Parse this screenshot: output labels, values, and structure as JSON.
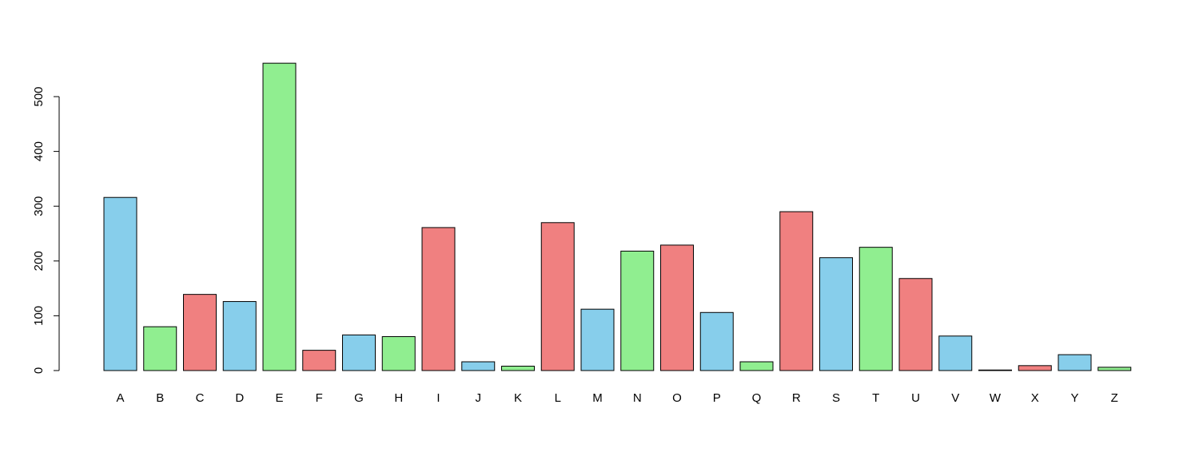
{
  "chart_data": {
    "type": "bar",
    "title": "",
    "xlabel": "",
    "ylabel": "",
    "categories": [
      "A",
      "B",
      "C",
      "D",
      "E",
      "F",
      "G",
      "H",
      "I",
      "J",
      "K",
      "L",
      "M",
      "N",
      "O",
      "P",
      "Q",
      "R",
      "S",
      "T",
      "U",
      "V",
      "W",
      "X",
      "Y",
      "Z"
    ],
    "values": [
      316,
      80,
      139,
      126,
      561,
      37,
      65,
      62,
      261,
      16,
      8,
      270,
      112,
      218,
      229,
      106,
      16,
      290,
      206,
      225,
      168,
      63,
      1,
      9,
      29,
      6
    ],
    "colors": [
      "#87CEEB",
      "#90EE90",
      "#F08080",
      "#87CEEB",
      "#90EE90",
      "#F08080",
      "#87CEEB",
      "#90EE90",
      "#F08080",
      "#87CEEB",
      "#90EE90",
      "#F08080",
      "#87CEEB",
      "#90EE90",
      "#F08080",
      "#87CEEB",
      "#90EE90",
      "#F08080",
      "#87CEEB",
      "#90EE90",
      "#F08080",
      "#87CEEB",
      "#90EE90",
      "#F08080",
      "#87CEEB",
      "#90EE90"
    ],
    "ylim": [
      0,
      561
    ],
    "yticks": [
      0,
      100,
      200,
      300,
      400,
      500
    ],
    "grid": false,
    "legend": "none"
  }
}
